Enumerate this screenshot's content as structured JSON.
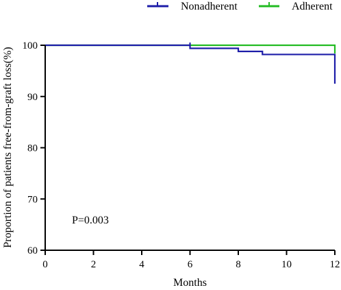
{
  "chart_data": {
    "type": "line",
    "subtype": "kaplan-meier step curve",
    "title": "",
    "xlabel": "Months",
    "ylabel": "Proportion of patients free-from-graft loss(%)",
    "xlim": [
      0,
      12
    ],
    "ylim": [
      60,
      100
    ],
    "x_ticks": [
      0,
      2,
      4,
      6,
      8,
      10,
      12
    ],
    "y_ticks": [
      60,
      70,
      80,
      90,
      100
    ],
    "grid": false,
    "legend_position": "top",
    "annotation": "P=0.003",
    "series": [
      {
        "name": "Nonadherent",
        "color": "#1c1ca8",
        "step_points": [
          [
            0,
            100
          ],
          [
            6,
            100
          ],
          [
            6,
            99.4
          ],
          [
            8,
            99.4
          ],
          [
            8,
            98.8
          ],
          [
            9,
            98.8
          ],
          [
            9,
            98.2
          ],
          [
            12,
            98.2
          ],
          [
            12,
            92.5
          ]
        ],
        "censor_marks": [
          [
            6,
            100
          ]
        ]
      },
      {
        "name": "Adherent",
        "color": "#22bb22",
        "step_points": [
          [
            0,
            100
          ],
          [
            12,
            100
          ],
          [
            12,
            98.4
          ]
        ],
        "censor_marks": []
      }
    ]
  }
}
